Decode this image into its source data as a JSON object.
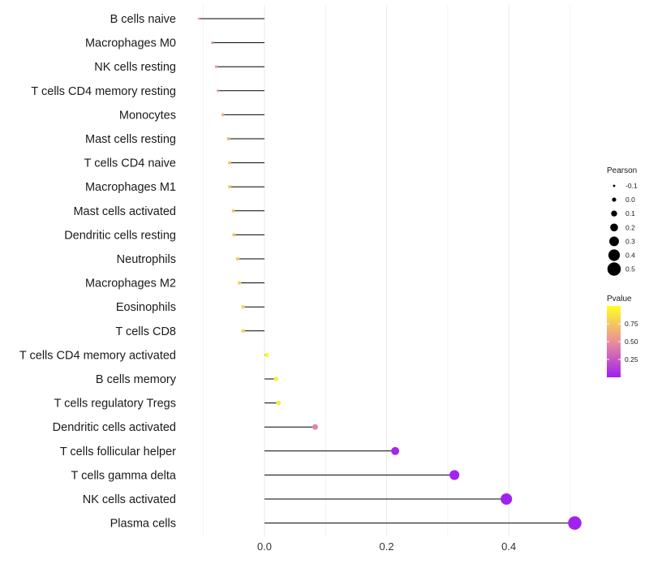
{
  "chart_data": {
    "type": "lollipop",
    "categories": [
      "B cells naive",
      "Macrophages M0",
      "NK cells resting",
      "T cells CD4 memory resting",
      "Monocytes",
      "Mast cells resting",
      "T cells CD4 naive",
      "Macrophages M1",
      "Mast cells activated",
      "Dendritic cells resting",
      "Neutrophils",
      "Macrophages M2",
      "Eosinophils",
      "T cells CD8",
      "T cells CD4 memory activated",
      "B cells memory",
      "T cells regulatory  Tregs ",
      "Dendritic cells activated",
      "T cells follicular helper",
      "T cells gamma delta",
      "NK cells activated",
      "Plasma cells"
    ],
    "values": [
      -0.107,
      -0.085,
      -0.079,
      -0.076,
      -0.068,
      -0.059,
      -0.057,
      -0.057,
      -0.051,
      -0.05,
      -0.044,
      -0.041,
      -0.035,
      -0.035,
      0.004,
      0.019,
      0.023,
      0.083,
      0.214,
      0.311,
      0.396,
      0.508
    ],
    "pvalues": [
      0.5,
      0.45,
      0.55,
      0.55,
      0.6,
      0.65,
      0.7,
      0.7,
      0.72,
      0.72,
      0.75,
      0.78,
      0.8,
      0.8,
      0.98,
      0.93,
      0.92,
      0.45,
      0.03,
      0.02,
      0.01,
      0.01
    ],
    "xlim": [
      -0.11,
      0.52
    ],
    "x_ticks": [
      0.0,
      0.2,
      0.4
    ],
    "x_tick_labels": [
      "0.0",
      "0.2",
      "0.4"
    ],
    "grid": true,
    "legend_position": "right",
    "size_legend": {
      "title": "Pearson",
      "levels": [
        -0.1,
        0.0,
        0.1,
        0.2,
        0.3,
        0.4,
        0.5
      ],
      "labels": [
        "-0.1",
        "0.0",
        "0.1",
        "0.2",
        "0.3",
        "0.4",
        "0.5"
      ]
    },
    "color_legend": {
      "title": "Pvalue",
      "range": [
        0,
        1
      ],
      "ticks": [
        0.75,
        0.5,
        0.25
      ],
      "tick_labels": [
        "0.75",
        "0.50",
        "0.25"
      ],
      "low_color": "#a020f0",
      "mid_color": "#ea8f9a",
      "high_color": "#ffff24"
    },
    "stem_color": "#000000",
    "grid_color": "#ebebeb"
  }
}
